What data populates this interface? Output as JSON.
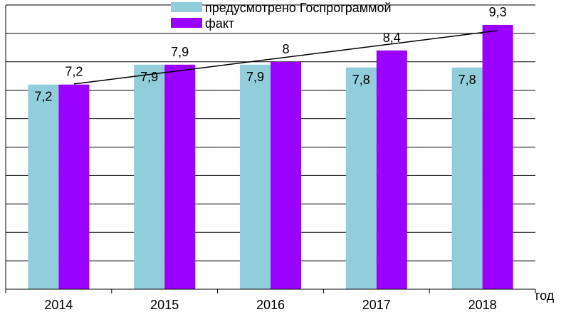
{
  "chart_data": {
    "type": "bar",
    "categories": [
      "2014",
      "2015",
      "2016",
      "2017",
      "2018"
    ],
    "series": [
      {
        "name": "предусмотрено Госпрограммой",
        "values": [
          7.2,
          7.9,
          7.9,
          7.8,
          7.8
        ],
        "labels": [
          "7,2",
          "7,9",
          "7,9",
          "7,8",
          "7,8"
        ],
        "color": "#92CDDC"
      },
      {
        "name": "факт",
        "values": [
          7.2,
          7.9,
          8.0,
          8.4,
          9.3
        ],
        "labels": [
          "7,2",
          "7,9",
          "8",
          "8,4",
          "9,3"
        ],
        "color": "#9900FF"
      }
    ],
    "trendline": {
      "series": "факт",
      "type": "linear",
      "color": "#000000"
    },
    "xlabel": "год",
    "ylabel": "",
    "ylim": [
      0,
      10
    ],
    "gridlines": true,
    "y_tick_labels_shown": false,
    "legend_position": "top"
  }
}
